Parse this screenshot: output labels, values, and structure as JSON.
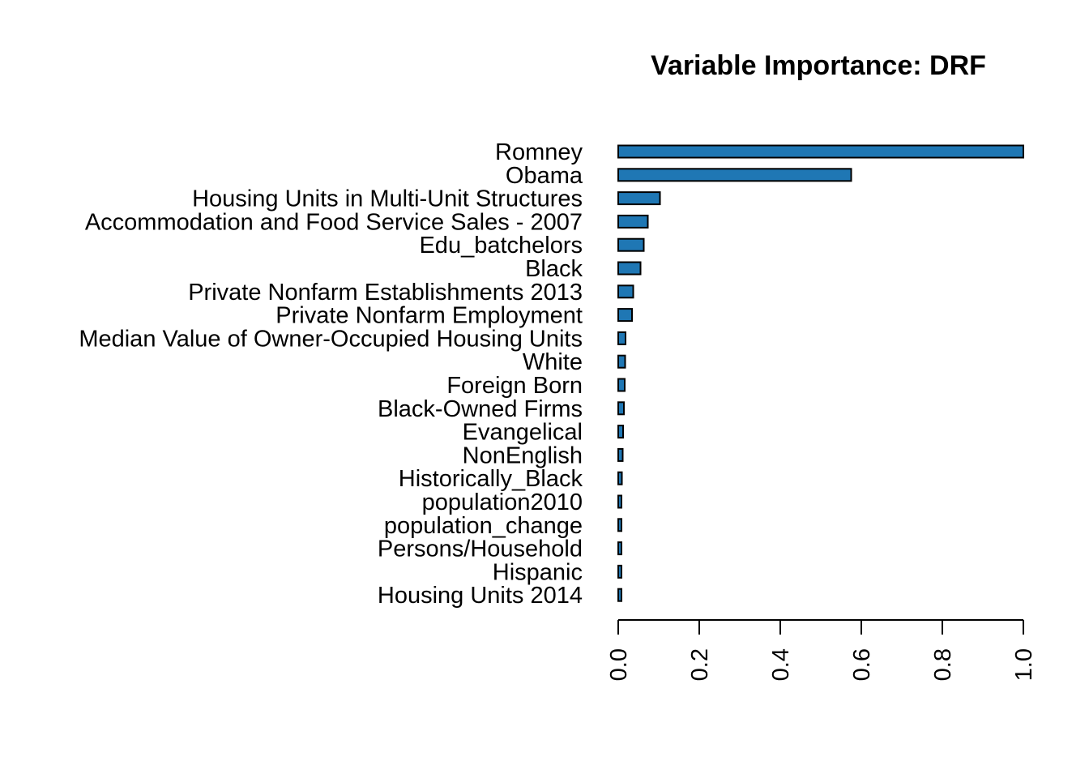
{
  "chart_data": {
    "type": "bar",
    "orientation": "horizontal",
    "title": "Variable Importance: DRF",
    "xlabel": "",
    "ylabel": "",
    "xlim": [
      0,
      1
    ],
    "x_ticks": [
      "0.0",
      "0.2",
      "0.4",
      "0.6",
      "0.8",
      "1.0"
    ],
    "grid": false,
    "bar_color": "#1F77B4",
    "categories": [
      "Romney",
      "Obama",
      "Housing Units in Multi-Unit Structures",
      "Accommodation and Food Service Sales - 2007",
      "Edu_batchelors",
      "Black",
      "Private Nonfarm Establishments 2013",
      "Private Nonfarm Employment",
      "Median Value of Owner-Occupied Housing Units",
      "White",
      "Foreign Born",
      "Black-Owned Firms",
      "Evangelical",
      "NonEnglish",
      "Historically_Black",
      "population2010",
      "population_change",
      "Persons/Household",
      "Hispanic",
      "Housing Units 2014"
    ],
    "values": [
      1.0,
      0.575,
      0.103,
      0.073,
      0.063,
      0.055,
      0.037,
      0.034,
      0.018,
      0.017,
      0.016,
      0.014,
      0.012,
      0.011,
      0.009,
      0.008,
      0.008,
      0.008,
      0.007,
      0.007
    ]
  }
}
